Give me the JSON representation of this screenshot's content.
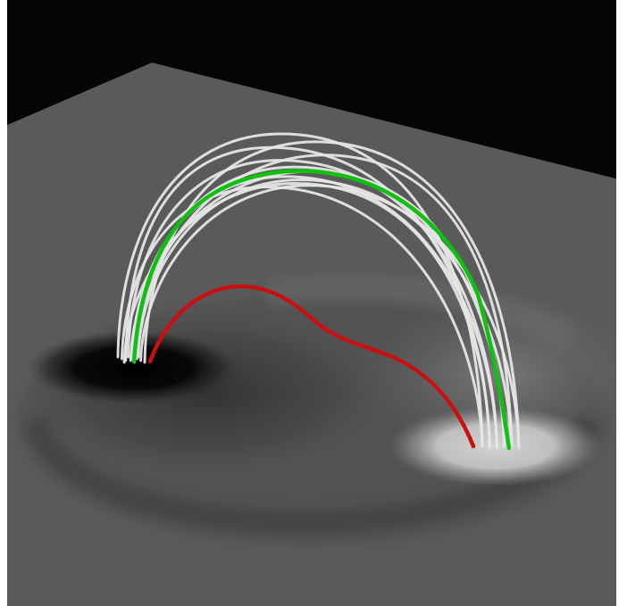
{
  "scene": {
    "background_color": "#ffffff",
    "sky_color": "#050407",
    "plane_base_color": "#5a5a5a"
  },
  "magnetogram": {
    "negative_polarity_color": "#000000",
    "positive_polarity_color": "#d2d2d2"
  },
  "field_lines": {
    "loop_color": "#e6e6e6",
    "highlighted_loop_color": "#10c010",
    "flux_rope_color": "#c81010",
    "loop_count": 12
  }
}
